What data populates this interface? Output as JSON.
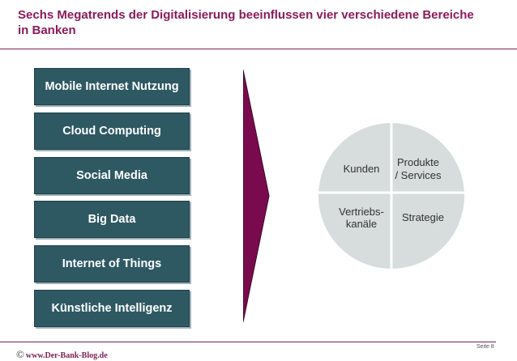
{
  "slide": {
    "title_line1": "Sechs Megatrends der Digitalisierung beeinflussen vier verschiedene Bereiche",
    "title_line2": "in Banken"
  },
  "megatrends": [
    "Mobile Internet Nutzung",
    "Cloud Computing",
    "Social Media",
    "Big Data",
    "Internet of Things",
    "Künstliche Intelligenz"
  ],
  "areas": {
    "top_left": "Kunden",
    "top_right_line1": "Produkte",
    "top_right_line2": "/ Services",
    "bottom_left_line1": "Vertriebs-",
    "bottom_left_line2": "kanäle",
    "bottom_right": "Strategie"
  },
  "footer": {
    "copyright_symbol": "©",
    "website": "www.Der-Bank-Blog.de",
    "page": "Seite 8"
  },
  "colors": {
    "title": "#8b1a5b",
    "box_fill": "#2e5963",
    "arrow_fill": "#7a0a4e",
    "circle_fill": "#d7dcdd"
  }
}
